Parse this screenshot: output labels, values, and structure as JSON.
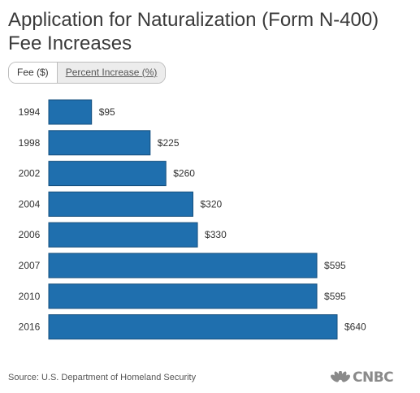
{
  "title": "Application for Naturalization (Form N-400) Fee Increases",
  "tabs": [
    {
      "label": "Fee ($)",
      "active": true
    },
    {
      "label": "Percent Increase (%)",
      "active": false
    }
  ],
  "chart_data": {
    "type": "bar",
    "orientation": "horizontal",
    "categories": [
      "1994",
      "1998",
      "2002",
      "2004",
      "2006",
      "2007",
      "2010",
      "2016"
    ],
    "values": [
      95,
      225,
      260,
      320,
      330,
      595,
      595,
      640
    ],
    "data_labels": [
      "$95",
      "$225",
      "$260",
      "$320",
      "$330",
      "$595",
      "$595",
      "$640"
    ],
    "xlim": [
      0,
      640
    ],
    "grid": false,
    "bar_color": "#1f6fae"
  },
  "source": "Source: U.S. Department of Homeland Security",
  "logo": {
    "text": "CNBC",
    "icon": "nbc-peacock-icon"
  }
}
